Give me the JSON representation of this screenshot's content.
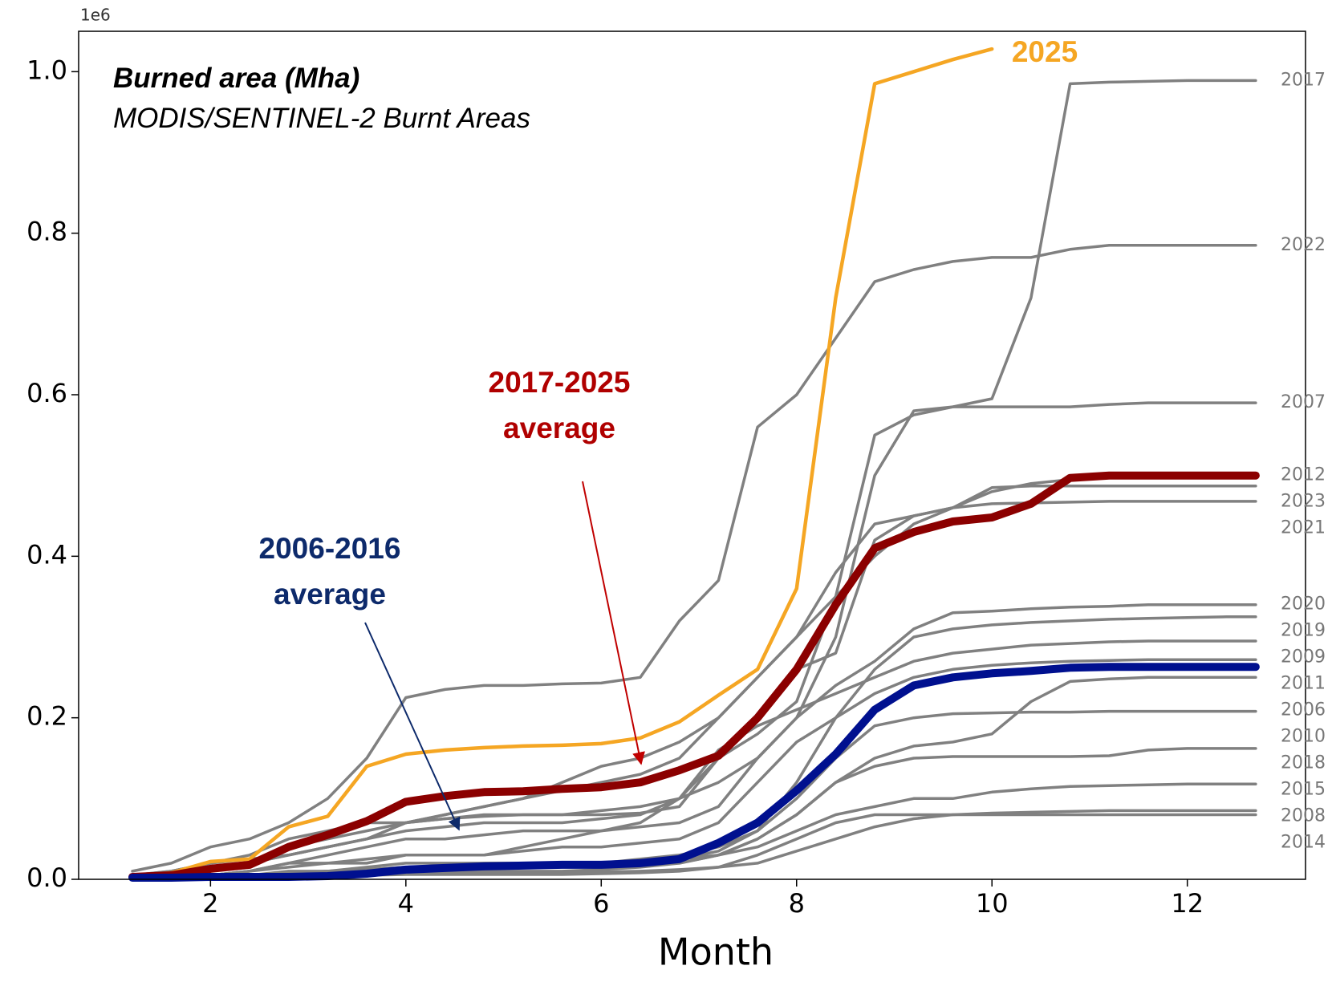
{
  "chart_data": {
    "type": "line",
    "offset_label": "1e6",
    "title": "Burned area (Mha)",
    "subtitle": "MODIS/SENTINEL-2 Burnt Areas",
    "x_label": "Month",
    "xlim": [
      0.65,
      13.21
    ],
    "ylim": [
      0,
      1.05
    ],
    "xticks": [
      2,
      4,
      6,
      8,
      10,
      12
    ],
    "yticks": [
      {
        "value": 0,
        "label": "0.0"
      },
      {
        "value": 0.2,
        "label": "0.2"
      },
      {
        "value": 0.4,
        "label": "0.4"
      },
      {
        "value": 0.6,
        "label": "0.6"
      },
      {
        "value": 0.8,
        "label": "0.8"
      },
      {
        "value": 1.0,
        "label": "1.0"
      }
    ],
    "x": [
      1.2,
      1.6,
      2.0,
      2.4,
      2.8,
      3.2,
      3.6,
      4.0,
      4.4,
      4.8,
      5.2,
      5.6,
      6.0,
      6.4,
      6.8,
      7.2,
      7.6,
      8.0,
      8.4,
      8.8,
      9.2,
      9.6,
      10.0,
      10.4,
      10.8,
      11.2,
      11.6,
      12.0,
      12.4,
      12.7
    ],
    "series": [
      {
        "name": "2025",
        "color": "#f5a623",
        "values": [
          0.003,
          0.008,
          0.022,
          0.025,
          0.065,
          0.078,
          0.14,
          0.155,
          0.16,
          0.163,
          0.165,
          0.166,
          0.168,
          0.175,
          0.195,
          0.228,
          0.26,
          0.36,
          0.72,
          0.985,
          1.0,
          1.015,
          1.028,
          null,
          null,
          null,
          null,
          null,
          null,
          null
        ]
      },
      {
        "name": "2017-2025 average",
        "color": "#8b0000",
        "values": [
          0.003,
          0.005,
          0.013,
          0.018,
          0.04,
          0.055,
          0.072,
          0.096,
          0.103,
          0.108,
          0.109,
          0.112,
          0.114,
          0.12,
          0.135,
          0.153,
          0.2,
          0.26,
          0.34,
          0.41,
          0.43,
          0.443,
          0.448,
          0.465,
          0.497,
          0.5,
          0.5,
          0.5,
          0.5,
          0.5
        ]
      },
      {
        "name": "2006-2016 average",
        "color": "#00108f",
        "values": [
          0.002,
          0.002,
          0.003,
          0.003,
          0.003,
          0.004,
          0.007,
          0.012,
          0.014,
          0.016,
          0.017,
          0.018,
          0.018,
          0.02,
          0.025,
          0.045,
          0.07,
          0.11,
          0.155,
          0.21,
          0.24,
          0.25,
          0.255,
          0.258,
          0.262,
          0.263,
          0.263,
          0.263,
          0.263,
          0.263
        ]
      },
      {
        "name": "2017",
        "color": "#808080",
        "values": [
          0.003,
          0.005,
          0.01,
          0.02,
          0.03,
          0.04,
          0.05,
          0.07,
          0.075,
          0.078,
          0.08,
          0.08,
          0.08,
          0.082,
          0.09,
          0.15,
          0.18,
          0.22,
          0.35,
          0.55,
          0.575,
          0.585,
          0.595,
          0.72,
          0.985,
          0.987,
          0.988,
          0.989,
          0.989,
          0.989
        ]
      },
      {
        "name": "2022",
        "color": "#808080",
        "values": [
          0.01,
          0.02,
          0.04,
          0.05,
          0.07,
          0.1,
          0.15,
          0.225,
          0.235,
          0.24,
          0.24,
          0.242,
          0.243,
          0.25,
          0.32,
          0.37,
          0.56,
          0.6,
          0.67,
          0.74,
          0.755,
          0.765,
          0.77,
          0.77,
          0.78,
          0.785,
          0.785,
          0.785,
          0.785,
          0.785
        ]
      },
      {
        "name": "2007",
        "color": "#808080",
        "values": [
          0.005,
          0.01,
          0.02,
          0.03,
          0.05,
          0.06,
          0.07,
          0.07,
          0.075,
          0.08,
          0.08,
          0.08,
          0.085,
          0.09,
          0.1,
          0.12,
          0.15,
          0.2,
          0.3,
          0.5,
          0.58,
          0.585,
          0.585,
          0.585,
          0.585,
          0.588,
          0.59,
          0.59,
          0.59,
          0.59
        ]
      },
      {
        "name": "2012",
        "color": "#808080",
        "values": [
          0.003,
          0.005,
          0.01,
          0.02,
          0.03,
          0.04,
          0.05,
          0.07,
          0.08,
          0.09,
          0.1,
          0.12,
          0.14,
          0.15,
          0.17,
          0.2,
          0.25,
          0.3,
          0.35,
          0.4,
          0.44,
          0.46,
          0.48,
          0.49,
          0.495,
          0.498,
          0.5,
          0.5,
          0.5,
          0.5
        ]
      },
      {
        "name": "2023",
        "color": "#808080",
        "values": [
          0.003,
          0.005,
          0.01,
          0.02,
          0.04,
          0.05,
          0.06,
          0.07,
          0.08,
          0.09,
          0.1,
          0.11,
          0.12,
          0.13,
          0.15,
          0.2,
          0.25,
          0.3,
          0.38,
          0.44,
          0.45,
          0.46,
          0.485,
          0.487,
          0.487,
          0.487,
          0.487,
          0.487,
          0.487,
          0.487
        ]
      },
      {
        "name": "2021",
        "color": "#808080",
        "values": [
          0.002,
          0.003,
          0.005,
          0.01,
          0.02,
          0.02,
          0.02,
          0.03,
          0.03,
          0.03,
          0.04,
          0.05,
          0.06,
          0.07,
          0.1,
          0.15,
          0.2,
          0.26,
          0.28,
          0.42,
          0.45,
          0.46,
          0.465,
          0.466,
          0.467,
          0.468,
          0.468,
          0.468,
          0.468,
          0.468
        ]
      },
      {
        "name": "2020",
        "color": "#808080",
        "values": [
          0.002,
          0.003,
          0.005,
          0.01,
          0.02,
          0.03,
          0.04,
          0.05,
          0.05,
          0.055,
          0.06,
          0.06,
          0.06,
          0.065,
          0.07,
          0.09,
          0.15,
          0.2,
          0.24,
          0.27,
          0.31,
          0.33,
          0.332,
          0.335,
          0.337,
          0.338,
          0.34,
          0.34,
          0.34,
          0.34
        ]
      },
      {
        "name": "2019",
        "color": "#808080",
        "values": [
          0.001,
          0.002,
          0.003,
          0.005,
          0.01,
          0.01,
          0.015,
          0.02,
          0.02,
          0.02,
          0.02,
          0.02,
          0.02,
          0.025,
          0.03,
          0.04,
          0.06,
          0.12,
          0.2,
          0.26,
          0.3,
          0.31,
          0.315,
          0.318,
          0.32,
          0.322,
          0.323,
          0.324,
          0.325,
          0.325
        ]
      },
      {
        "name": "2009",
        "color": "#808080",
        "values": [
          0.005,
          0.01,
          0.02,
          0.025,
          0.03,
          0.04,
          0.05,
          0.06,
          0.065,
          0.07,
          0.07,
          0.07,
          0.075,
          0.08,
          0.1,
          0.16,
          0.19,
          0.21,
          0.23,
          0.25,
          0.27,
          0.28,
          0.285,
          0.29,
          0.292,
          0.294,
          0.295,
          0.295,
          0.295,
          0.295
        ]
      },
      {
        "name": "2011",
        "color": "#808080",
        "values": [
          0.002,
          0.003,
          0.005,
          0.01,
          0.015,
          0.02,
          0.025,
          0.03,
          0.03,
          0.03,
          0.035,
          0.04,
          0.04,
          0.045,
          0.05,
          0.07,
          0.12,
          0.17,
          0.2,
          0.23,
          0.25,
          0.26,
          0.265,
          0.268,
          0.27,
          0.271,
          0.272,
          0.272,
          0.272,
          0.272
        ]
      },
      {
        "name": "2006",
        "color": "#808080",
        "values": [
          0.001,
          0.002,
          0.003,
          0.005,
          0.008,
          0.01,
          0.01,
          0.01,
          0.012,
          0.015,
          0.015,
          0.015,
          0.015,
          0.02,
          0.02,
          0.03,
          0.05,
          0.08,
          0.12,
          0.15,
          0.165,
          0.17,
          0.18,
          0.22,
          0.245,
          0.248,
          0.25,
          0.25,
          0.25,
          0.25
        ]
      },
      {
        "name": "2010",
        "color": "#808080",
        "values": [
          0.001,
          0.002,
          0.003,
          0.005,
          0.008,
          0.01,
          0.012,
          0.015,
          0.015,
          0.016,
          0.017,
          0.018,
          0.02,
          0.02,
          0.025,
          0.035,
          0.06,
          0.1,
          0.15,
          0.19,
          0.2,
          0.205,
          0.206,
          0.207,
          0.207,
          0.208,
          0.208,
          0.208,
          0.208,
          0.208
        ]
      },
      {
        "name": "2018",
        "color": "#808080",
        "values": [
          0.001,
          0.002,
          0.003,
          0.004,
          0.005,
          0.006,
          0.008,
          0.01,
          0.01,
          0.01,
          0.01,
          0.01,
          0.012,
          0.015,
          0.02,
          0.03,
          0.05,
          0.08,
          0.12,
          0.14,
          0.15,
          0.152,
          0.152,
          0.152,
          0.152,
          0.153,
          0.16,
          0.162,
          0.162,
          0.162
        ]
      },
      {
        "name": "2015",
        "color": "#808080",
        "values": [
          0.001,
          0.002,
          0.003,
          0.005,
          0.007,
          0.01,
          0.012,
          0.015,
          0.017,
          0.02,
          0.02,
          0.02,
          0.02,
          0.022,
          0.025,
          0.03,
          0.04,
          0.06,
          0.08,
          0.09,
          0.1,
          0.1,
          0.108,
          0.112,
          0.115,
          0.116,
          0.117,
          0.118,
          0.118,
          0.118
        ]
      },
      {
        "name": "2008",
        "color": "#808080",
        "values": [
          0.001,
          0.002,
          0.003,
          0.004,
          0.005,
          0.006,
          0.007,
          0.008,
          0.008,
          0.008,
          0.008,
          0.008,
          0.009,
          0.01,
          0.012,
          0.015,
          0.02,
          0.035,
          0.05,
          0.065,
          0.075,
          0.08,
          0.082,
          0.083,
          0.084,
          0.085,
          0.085,
          0.085,
          0.085,
          0.085
        ]
      },
      {
        "name": "2014",
        "color": "#808080",
        "values": [
          0.0,
          0.001,
          0.002,
          0.003,
          0.004,
          0.005,
          0.005,
          0.006,
          0.006,
          0.006,
          0.006,
          0.006,
          0.007,
          0.008,
          0.01,
          0.015,
          0.03,
          0.05,
          0.07,
          0.08,
          0.08,
          0.08,
          0.08,
          0.08,
          0.08,
          0.08,
          0.08,
          0.08,
          0.08,
          0.08
        ]
      }
    ]
  }
}
